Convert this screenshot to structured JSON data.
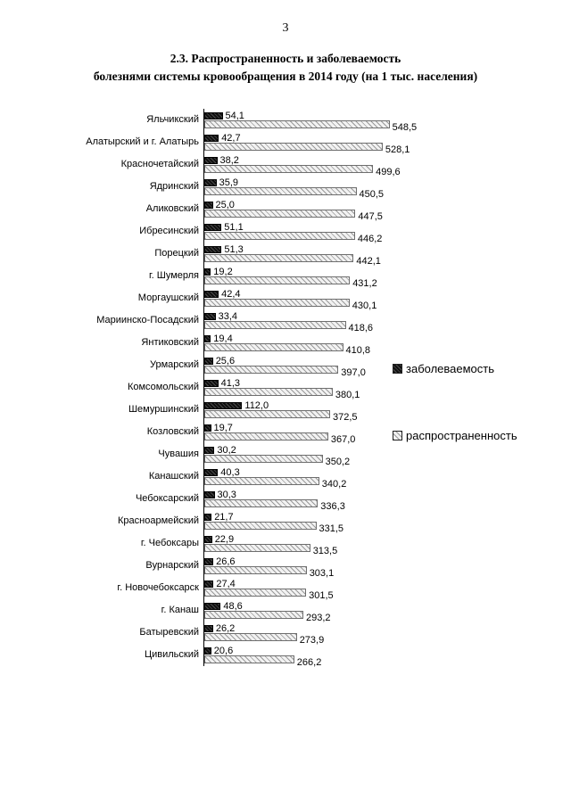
{
  "page": {
    "number": "3"
  },
  "title": {
    "line1": "2.3. Распространенность и заболеваемость",
    "line2": "болезнями системы кровообращения в 2014 году (на 1 тыс. населения)"
  },
  "chart_data": {
    "type": "bar",
    "orientation": "horizontal",
    "title": "2.3. Распространенность и заболеваемость болезнями системы кровообращения в 2014 году (на 1 тыс. населения)",
    "categories": [
      "Яльчикский",
      "Алатырский и г. Алатырь",
      "Красночетайский",
      "Ядринский",
      "Аликовский",
      "Ибресинский",
      "Порецкий",
      "г. Шумерля",
      "Моргаушский",
      "Мариинско-Посадский",
      "Янтиковский",
      "Урмарский",
      "Комсомольский",
      "Шемуршинский",
      "Козловский",
      "Чувашия",
      "Канашский",
      "Чебоксарский",
      "Красноармейский",
      "г. Чебоксары",
      "Вурнарский",
      "г. Новочебоксарск",
      "г. Канаш",
      "Батыревский",
      "Цивильский"
    ],
    "series": [
      {
        "name": "заболеваемость",
        "color": "#2b2b2b",
        "values": [
          54.1,
          42.7,
          38.2,
          35.9,
          25.0,
          51.1,
          51.3,
          19.2,
          42.4,
          33.4,
          19.4,
          25.6,
          41.3,
          112.0,
          19.7,
          30.2,
          40.3,
          30.3,
          21.7,
          22.9,
          26.6,
          27.4,
          48.6,
          26.2,
          20.6
        ]
      },
      {
        "name": "распространенность",
        "color": "#eeeeee",
        "values": [
          548.5,
          528.1,
          499.6,
          450.5,
          447.5,
          446.2,
          442.1,
          431.2,
          430.1,
          418.6,
          410.8,
          397.0,
          380.1,
          372.5,
          367.0,
          350.2,
          340.2,
          336.3,
          331.5,
          313.5,
          303.1,
          301.5,
          293.2,
          273.9,
          266.2
        ]
      }
    ],
    "value_labels": true,
    "decimal_separator": ",",
    "xlim": [
      0,
      560
    ],
    "grid": false,
    "legend_position": "right"
  }
}
